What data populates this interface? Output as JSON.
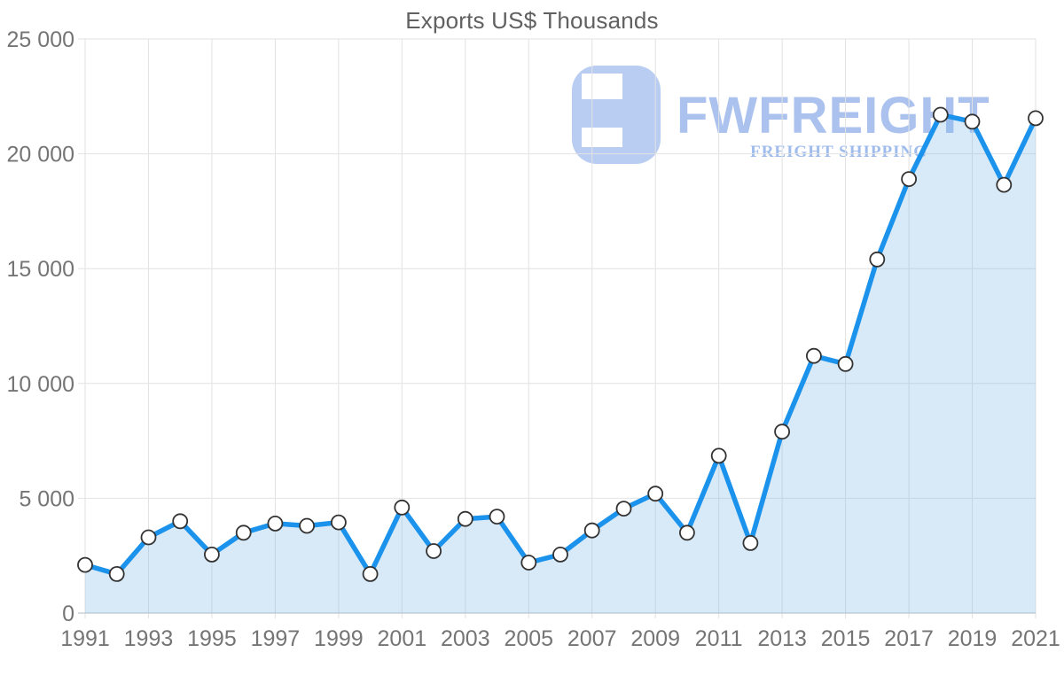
{
  "page": {
    "background": "#ffffff"
  },
  "watermark": {
    "brand": "FWFREIGHT",
    "subtitle": "FREIGHT SHIPPING",
    "logo_color": "#b9cdf3",
    "brand_color": "#abc2ef",
    "subtitle_color": "#9fbcec"
  },
  "chart_data": {
    "type": "area",
    "title": "Exports US$ Thousands",
    "x": [
      1991,
      1992,
      1993,
      1994,
      1995,
      1996,
      1997,
      1998,
      1999,
      2000,
      2001,
      2002,
      2003,
      2004,
      2005,
      2006,
      2007,
      2008,
      2009,
      2010,
      2011,
      2012,
      2013,
      2014,
      2015,
      2016,
      2017,
      2018,
      2019,
      2020,
      2021
    ],
    "series": [
      {
        "name": "Exports US$ Thousands",
        "values": [
          2100,
          1700,
          3300,
          4000,
          2550,
          3500,
          3900,
          3800,
          3950,
          1700,
          4600,
          2700,
          4100,
          4200,
          2200,
          2550,
          3600,
          4550,
          5200,
          3500,
          6850,
          3050,
          7900,
          11200,
          10850,
          15400,
          18900,
          21700,
          21400,
          18650,
          21550
        ]
      }
    ],
    "ylim": [
      0,
      25000
    ],
    "yticks": [
      {
        "value": 0,
        "label": "0"
      },
      {
        "value": 5000,
        "label": "5 000"
      },
      {
        "value": 10000,
        "label": "10 000"
      },
      {
        "value": 15000,
        "label": "15 000"
      },
      {
        "value": 20000,
        "label": "20 000"
      },
      {
        "value": 25000,
        "label": "25 000"
      }
    ],
    "xticks": [
      1991,
      1993,
      1995,
      1997,
      1999,
      2001,
      2003,
      2005,
      2007,
      2009,
      2011,
      2013,
      2015,
      2017,
      2019,
      2021
    ],
    "grid": true,
    "legend": "none",
    "colors": {
      "line": "#1b93ec",
      "fill": "#7db8e8",
      "fill_opacity": 0.3,
      "marker_fill": "#ffffff",
      "marker_stroke": "#333333",
      "grid": "#e2e2e2",
      "axis_line": "#ccd2d6",
      "axis_text": "#757575",
      "title_text": "#616161"
    }
  }
}
